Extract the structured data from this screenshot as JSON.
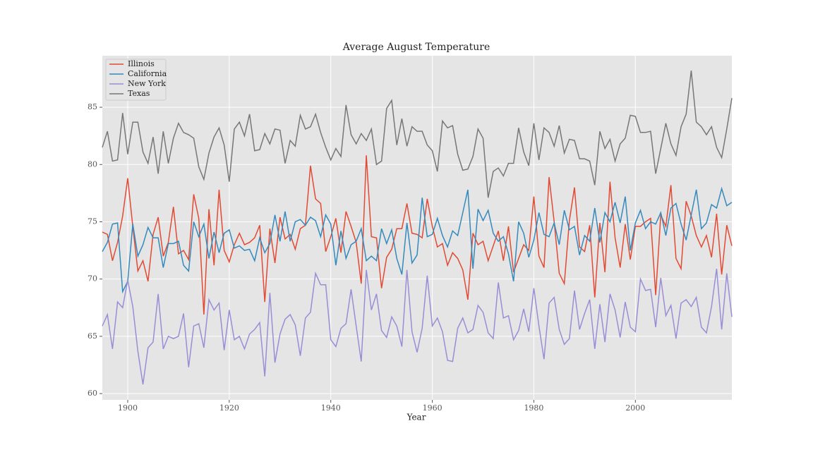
{
  "chart_data": {
    "type": "line",
    "title": "Average August Temperature",
    "x_label": "Year",
    "x": [
      1895,
      1896,
      1897,
      1898,
      1899,
      1900,
      1901,
      1902,
      1903,
      1904,
      1905,
      1906,
      1907,
      1908,
      1909,
      1910,
      1911,
      1912,
      1913,
      1914,
      1915,
      1916,
      1917,
      1918,
      1919,
      1920,
      1921,
      1922,
      1923,
      1924,
      1925,
      1926,
      1927,
      1928,
      1929,
      1930,
      1931,
      1932,
      1933,
      1934,
      1935,
      1936,
      1937,
      1938,
      1939,
      1940,
      1941,
      1942,
      1943,
      1944,
      1945,
      1946,
      1947,
      1948,
      1949,
      1950,
      1951,
      1952,
      1953,
      1954,
      1955,
      1956,
      1957,
      1958,
      1959,
      1960,
      1961,
      1962,
      1963,
      1964,
      1965,
      1966,
      1967,
      1968,
      1969,
      1970,
      1971,
      1972,
      1973,
      1974,
      1975,
      1976,
      1977,
      1978,
      1979,
      1980,
      1981,
      1982,
      1983,
      1984,
      1985,
      1986,
      1987,
      1988,
      1989,
      1990,
      1991,
      1992,
      1993,
      1994,
      1995,
      1996,
      1997,
      1998,
      1999,
      2000,
      2001,
      2002,
      2003,
      2004,
      2005,
      2006,
      2007,
      2008,
      2009,
      2010,
      2011,
      2012,
      2013,
      2014,
      2015,
      2016,
      2017,
      2018,
      2019
    ],
    "series": [
      {
        "name": "Illinois",
        "color": "#E24A33",
        "values": [
          74.1,
          73.9,
          71.6,
          73.2,
          75.5,
          78.8,
          74.6,
          70.7,
          71.6,
          69.8,
          73.9,
          75.4,
          72.0,
          73.2,
          76.3,
          72.2,
          72.5,
          71.7,
          77.4,
          75.3,
          66.9,
          76.1,
          71.2,
          77.8,
          72.5,
          71.5,
          73.0,
          74.0,
          73.0,
          73.2,
          73.6,
          74.7,
          68.0,
          74.4,
          71.4,
          75.4,
          73.5,
          73.9,
          72.6,
          74.4,
          74.7,
          79.9,
          77.0,
          76.6,
          72.4,
          73.7,
          75.3,
          72.3,
          75.9,
          74.6,
          73.2,
          69.6,
          80.8,
          73.7,
          73.6,
          69.2,
          71.9,
          72.6,
          74.4,
          74.4,
          76.6,
          74.0,
          73.9,
          73.6,
          77.0,
          74.6,
          72.8,
          73.1,
          71.2,
          72.3,
          71.8,
          70.8,
          68.2,
          74.0,
          73.0,
          73.3,
          71.6,
          72.9,
          74.2,
          71.6,
          74.6,
          70.6,
          71.8,
          73.0,
          72.5,
          77.2,
          72.0,
          71.0,
          78.9,
          75.0,
          70.5,
          69.6,
          75.1,
          78.0,
          72.8,
          72.4,
          74.7,
          68.4,
          74.9,
          70.6,
          78.5,
          73.6,
          71.0,
          74.8,
          71.7,
          74.6,
          74.6,
          75.0,
          75.3,
          68.6,
          75.6,
          74.6,
          78.2,
          71.8,
          70.9,
          76.8,
          75.5,
          73.8,
          72.8,
          73.8,
          71.9,
          75.7,
          70.4,
          74.7,
          72.9
        ]
      },
      {
        "name": "California",
        "color": "#348ABD",
        "values": [
          72.4,
          73.2,
          74.8,
          74.9,
          68.9,
          69.8,
          74.8,
          72.0,
          73.0,
          74.5,
          73.6,
          73.6,
          71.0,
          73.1,
          73.1,
          73.3,
          71.2,
          70.7,
          75.0,
          73.7,
          74.8,
          71.8,
          74.1,
          72.3,
          74.0,
          74.3,
          72.7,
          72.9,
          72.5,
          72.6,
          71.6,
          73.6,
          72.3,
          73.1,
          75.6,
          73.3,
          75.9,
          73.3,
          75.0,
          75.2,
          74.7,
          75.4,
          75.1,
          73.7,
          75.6,
          74.8,
          71.2,
          74.2,
          71.8,
          73.0,
          73.3,
          74.4,
          71.6,
          72.0,
          71.6,
          74.4,
          73.1,
          74.3,
          71.8,
          70.4,
          74.9,
          71.4,
          72.1,
          77.1,
          73.7,
          73.9,
          75.3,
          73.8,
          72.8,
          74.2,
          73.8,
          75.8,
          77.8,
          70.9,
          76.1,
          75.1,
          76.0,
          74.0,
          73.3,
          73.7,
          72.2,
          69.8,
          75.0,
          74.0,
          71.9,
          73.4,
          75.8,
          73.9,
          73.7,
          74.9,
          73.0,
          76.0,
          74.3,
          74.6,
          72.1,
          73.8,
          73.3,
          76.2,
          73.2,
          75.8,
          75.0,
          76.7,
          74.9,
          77.2,
          72.5,
          74.9,
          76.0,
          74.4,
          75.0,
          74.8,
          75.8,
          73.8,
          76.2,
          76.6,
          74.8,
          73.4,
          75.6,
          77.8,
          74.4,
          74.9,
          76.5,
          76.2,
          77.9,
          76.4,
          76.7
        ]
      },
      {
        "name": "New York",
        "color": "#988ED5",
        "values": [
          65.9,
          66.9,
          63.9,
          68.0,
          67.5,
          69.9,
          67.6,
          63.7,
          60.8,
          64.0,
          64.5,
          68.7,
          63.9,
          65.0,
          64.8,
          65.0,
          67.0,
          62.3,
          65.9,
          66.1,
          64.0,
          68.2,
          67.3,
          67.9,
          63.8,
          67.3,
          64.7,
          65.0,
          63.9,
          65.2,
          65.6,
          66.2,
          61.5,
          68.8,
          62.7,
          65.2,
          66.5,
          66.9,
          66.0,
          63.3,
          66.6,
          67.1,
          70.5,
          69.5,
          69.5,
          64.7,
          64.1,
          65.7,
          66.1,
          69.1,
          65.9,
          62.8,
          70.8,
          67.3,
          68.7,
          65.5,
          64.9,
          66.7,
          65.9,
          64.1,
          70.8,
          65.4,
          63.6,
          65.7,
          70.3,
          65.9,
          66.6,
          65.4,
          62.9,
          62.8,
          65.7,
          66.6,
          65.3,
          65.6,
          67.7,
          67.1,
          65.3,
          64.8,
          69.7,
          66.6,
          66.8,
          64.7,
          65.5,
          67.4,
          65.4,
          69.2,
          65.9,
          63.0,
          67.9,
          68.4,
          65.6,
          64.3,
          64.8,
          69.0,
          65.6,
          67.0,
          68.2,
          63.9,
          67.8,
          64.5,
          68.7,
          67.3,
          64.9,
          68.0,
          65.8,
          65.4,
          70.0,
          69.0,
          69.1,
          65.8,
          70.1,
          66.8,
          67.7,
          64.8,
          67.9,
          68.2,
          67.6,
          68.4,
          65.8,
          65.3,
          67.6,
          70.9,
          65.6,
          70.5,
          66.7
        ]
      },
      {
        "name": "Texas",
        "color": "#777777",
        "values": [
          81.5,
          82.9,
          80.3,
          80.4,
          84.5,
          80.9,
          83.7,
          83.7,
          81.1,
          80.1,
          82.4,
          79.2,
          82.9,
          80.1,
          82.3,
          83.6,
          82.8,
          82.6,
          82.3,
          79.8,
          78.7,
          81.0,
          82.4,
          83.2,
          81.7,
          78.5,
          83.1,
          83.7,
          82.5,
          84.4,
          81.2,
          81.3,
          82.7,
          81.8,
          83.1,
          83.0,
          80.1,
          82.1,
          81.6,
          84.3,
          83.1,
          83.3,
          84.4,
          82.8,
          81.5,
          80.4,
          81.4,
          80.7,
          85.2,
          82.6,
          81.8,
          82.7,
          82.1,
          83.1,
          80.0,
          80.3,
          84.9,
          85.6,
          81.7,
          84.0,
          81.6,
          83.3,
          82.9,
          82.9,
          81.7,
          81.2,
          79.4,
          83.8,
          83.2,
          83.4,
          80.9,
          79.5,
          79.6,
          80.7,
          83.1,
          82.3,
          77.1,
          79.4,
          79.7,
          79.0,
          80.1,
          80.1,
          83.2,
          81.1,
          79.9,
          83.6,
          80.4,
          83.2,
          82.8,
          81.6,
          83.4,
          81.0,
          82.2,
          82.1,
          80.5,
          80.5,
          80.3,
          78.2,
          82.9,
          81.4,
          82.2,
          80.3,
          81.8,
          82.3,
          84.3,
          84.2,
          82.8,
          82.8,
          82.9,
          79.2,
          81.4,
          83.6,
          81.8,
          80.8,
          83.3,
          84.4,
          88.2,
          83.7,
          83.3,
          82.6,
          83.3,
          81.5,
          80.6,
          83.1,
          85.8
        ]
      }
    ],
    "xlim": [
      1895,
      2019
    ],
    "xticks": [
      1900,
      1920,
      1940,
      1960,
      1980,
      2000
    ],
    "ylim": [
      59.45,
      89.5
    ],
    "yticks": [
      60,
      65,
      70,
      75,
      80,
      85
    ],
    "grid": true,
    "legend": "upper-left"
  }
}
